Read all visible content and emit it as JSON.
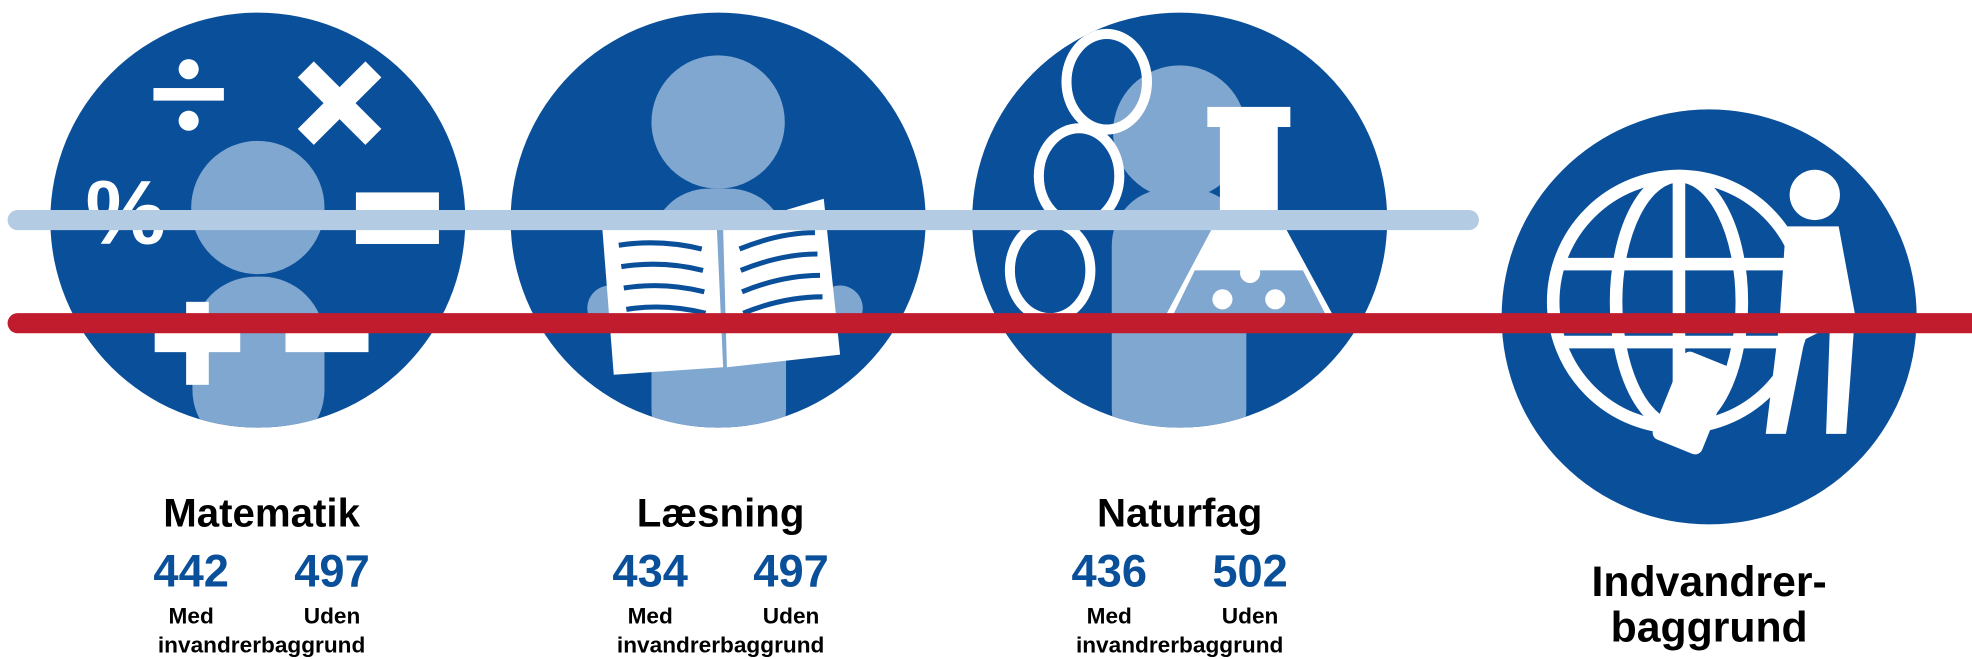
{
  "panels": [
    {
      "title": "Matematik",
      "with_value": "442",
      "without_value": "497",
      "with_label": "Med",
      "without_label": "Uden",
      "suffix": "invandrerbaggrund"
    },
    {
      "title": "Læsning",
      "with_value": "434",
      "without_value": "497",
      "with_label": "Med",
      "without_label": "Uden",
      "suffix": "invandrerbaggrund"
    },
    {
      "title": "Naturfag",
      "with_value": "436",
      "without_value": "502",
      "with_label": "Med",
      "without_label": "Uden",
      "suffix": "invandrerbaggrund"
    }
  ],
  "legend": {
    "lines": [
      "Indvandrer-",
      "baggrund"
    ]
  }
}
